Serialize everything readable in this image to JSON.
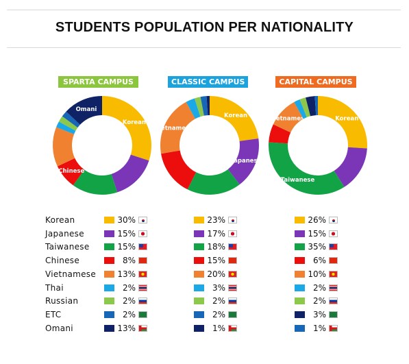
{
  "title": "STUDENTS POPULATION PER NATIONALITY",
  "colors": {
    "Korean": "#f8bb00",
    "Japanese": "#7a36b6",
    "Taiwanese": "#13a347",
    "Chinese": "#ec0d0d",
    "Vietnamese": "#ef8131",
    "Thai": "#1aa9e6",
    "Russian": "#8cc84b",
    "ETC": "#1767b6",
    "Omani": "#0e2265"
  },
  "campus_label_colors": [
    "#8cc63e",
    "#1ca2dd",
    "#f06b22"
  ],
  "chart_data": [
    {
      "type": "pie",
      "title": "SPARTA CAMPUS",
      "categories": [
        "Korean",
        "Japanese",
        "Taiwanese",
        "Chinese",
        "Vietnamese",
        "Thai",
        "Russian",
        "ETC",
        "Omani"
      ],
      "values": [
        30,
        15,
        15,
        8,
        13,
        2,
        2,
        2,
        13
      ],
      "display": [
        "30%",
        "15%",
        "15%",
        "8%",
        "13%",
        "2%",
        "2%",
        "2%",
        "13%"
      ],
      "slice_labels": [
        "Korean",
        "",
        "",
        "Chinese",
        "",
        "",
        "",
        "",
        "Omani"
      ]
    },
    {
      "type": "pie",
      "title": "CLASSIC CAMPUS",
      "categories": [
        "Korean",
        "Japanese",
        "Taiwanese",
        "Chinese",
        "Vietnamese",
        "Thai",
        "Russian",
        "ETC",
        "Omani"
      ],
      "values": [
        23,
        17,
        18,
        15,
        20,
        3,
        2,
        2,
        1
      ],
      "display": [
        "23%",
        "17%",
        "18%",
        "15%",
        "20%",
        "3%",
        "2%",
        "2%",
        "1%"
      ],
      "slice_labels": [
        "Korean",
        "Japanese",
        "",
        "",
        "Vietnamese",
        "",
        "",
        "",
        ""
      ]
    },
    {
      "type": "pie",
      "title": "CAPITAL CAMPUS",
      "categories": [
        "Korean",
        "Japanese",
        "Taiwanese",
        "Chinese",
        "Vietnamese",
        "Thai",
        "Russian",
        "ETC",
        "Omani"
      ],
      "values": [
        26,
        15,
        35,
        6,
        10,
        2,
        2,
        3,
        1
      ],
      "display": [
        "26%",
        "15%",
        "35%",
        "6%",
        "10%",
        "2%",
        "2%",
        "3%",
        "1%"
      ],
      "slice_labels": [
        "Korean",
        "",
        "Taiwanese",
        "",
        "Vietnamese",
        "",
        "",
        "",
        ""
      ]
    }
  ],
  "legend_colors": [
    [
      "#f8bb00",
      "#7a36b6",
      "#13a347",
      "#ec0d0d",
      "#ef8131",
      "#1aa9e6",
      "#8cc84b",
      "#1767b6",
      "#0e2265"
    ],
    [
      "#f8bb00",
      "#7a36b6",
      "#13a347",
      "#ec0d0d",
      "#ef8131",
      "#1aa9e6",
      "#8cc84b",
      "#1767b6",
      "#0e2265"
    ],
    [
      "#f8bb00",
      "#7a36b6",
      "#13a347",
      "#ec0d0d",
      "#ef8131",
      "#1aa9e6",
      "#8cc84b",
      "#0e2265",
      "#1767b6"
    ]
  ]
}
